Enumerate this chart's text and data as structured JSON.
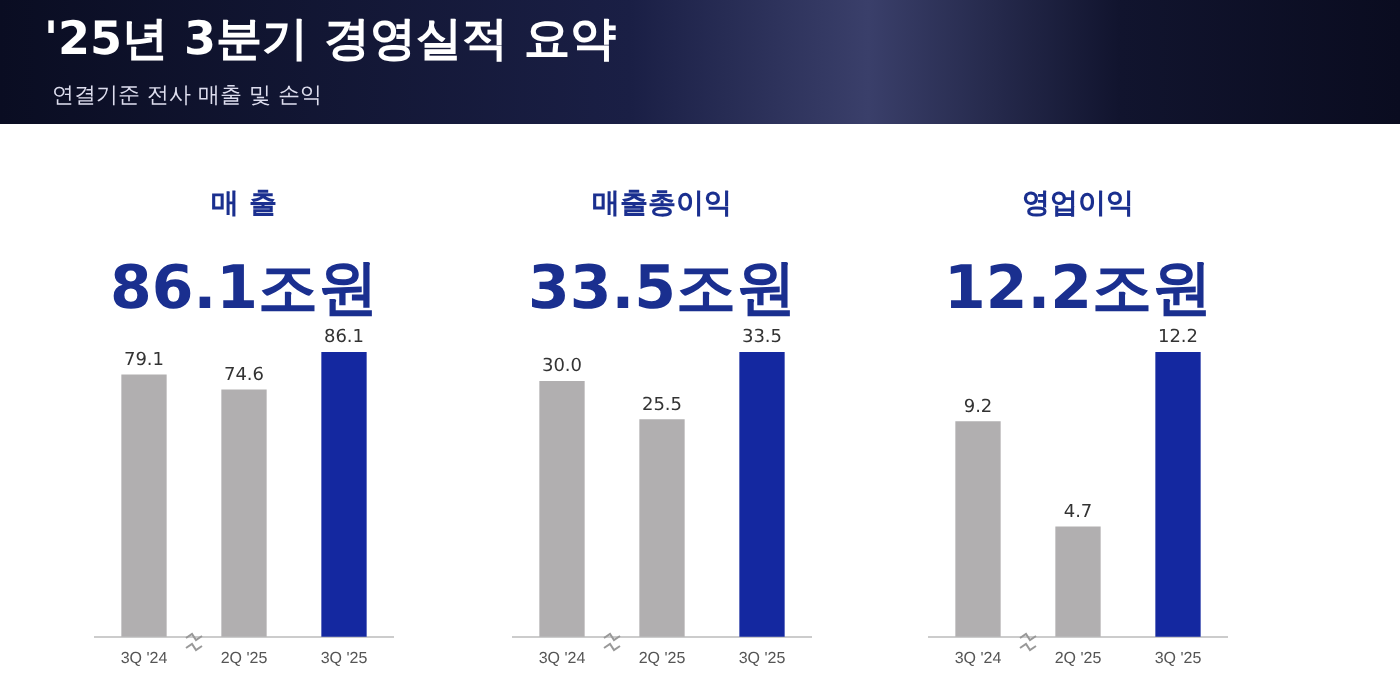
{
  "chart_data": [
    {
      "type": "other",
      "title": "'25년 3분기 경영실적 요약",
      "subtitle": "연결기준 전사 매출 및 손익"
    },
    {
      "type": "bar",
      "title": "매 출",
      "annotations": [
        "86.1조원"
      ],
      "categories": [
        "3Q '24",
        "2Q '25",
        "3Q '25"
      ],
      "values": [
        79.1,
        74.6,
        86.1
      ],
      "colors": [
        "#b1afb0",
        "#b1afb0",
        "#1428a0"
      ],
      "data_labels": true,
      "grid": false,
      "legend": false,
      "tick_labels": "x"
    },
    {
      "type": "bar",
      "title": "매출총이익",
      "annotations": [
        "33.5조원"
      ],
      "categories": [
        "3Q '24",
        "2Q '25",
        "3Q '25"
      ],
      "values": [
        30.0,
        25.5,
        33.5
      ],
      "value_labels": [
        "30.0",
        "25.5",
        "33.5"
      ],
      "colors": [
        "#b1afb0",
        "#b1afb0",
        "#1428a0"
      ],
      "grid": false,
      "legend": false,
      "tick_labels": "x"
    },
    {
      "type": "bar",
      "title": "영업이익",
      "annotations": [
        "12.2조원"
      ],
      "categories": [
        "3Q '24",
        "2Q '25",
        "3Q '25"
      ],
      "values": [
        9.2,
        4.7,
        12.2
      ],
      "colors": [
        "#b1afb0",
        "#b1afb0",
        "#1428a0"
      ],
      "data_labels": true,
      "grid": false,
      "legend": false,
      "tick_labels": "x"
    }
  ]
}
